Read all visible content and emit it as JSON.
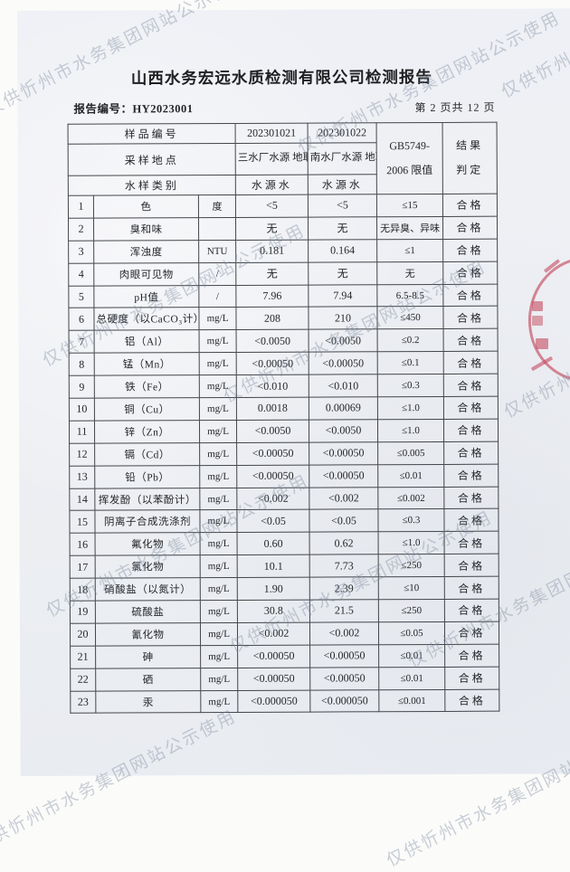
{
  "watermark": {
    "text": "仅供忻州市水务集团网站公示使用"
  },
  "report": {
    "title": "山西水务宏远水质检测有限公司检测报告",
    "report_no": "报告编号：HY2023001",
    "page_info": "第 2 页共 12 页"
  },
  "table": {
    "header": {
      "sample_no_label": "样品编号",
      "sampling_site_label": "采样地点",
      "sample_type_label": "水样类别",
      "sample1_no": "202301021",
      "sample2_no": "202301022",
      "sample1_site": "三水厂水源\n地取水口",
      "sample2_site": "南水厂水源\n地取水口",
      "sample1_type": "水源水",
      "sample2_type": "水源水",
      "limit_line1": "GB5749-",
      "limit_line2": "2006 限值",
      "result_line1": "结果",
      "result_line2": "判定"
    },
    "rows": [
      {
        "no": "1",
        "item": "色",
        "unit": "度",
        "v1": "<5",
        "v2": "<5",
        "limit": "≤15",
        "result": "合格"
      },
      {
        "no": "2",
        "item": "臭和味",
        "unit": "",
        "v1": "无",
        "v2": "无",
        "limit": "无异臭、异味",
        "result": "合格"
      },
      {
        "no": "3",
        "item": "浑浊度",
        "unit": "NTU",
        "v1": "0.181",
        "v2": "0.164",
        "limit": "≤1",
        "result": "合格"
      },
      {
        "no": "4",
        "item": "肉眼可见物",
        "unit": "/",
        "v1": "无",
        "v2": "无",
        "limit": "无",
        "result": "合格"
      },
      {
        "no": "5",
        "item": "pH值",
        "unit": "/",
        "v1": "7.96",
        "v2": "7.94",
        "limit": "6.5-8.5",
        "result": "合格"
      },
      {
        "no": "6",
        "item": "总硬度（以CaCO₃计）",
        "unit": "mg/L",
        "v1": "208",
        "v2": "210",
        "limit": "≤450",
        "result": "合格"
      },
      {
        "no": "7",
        "item": "铝（Al）",
        "unit": "mg/L",
        "v1": "<0.0050",
        "v2": "<0.0050",
        "limit": "≤0.2",
        "result": "合格"
      },
      {
        "no": "8",
        "item": "锰（Mn）",
        "unit": "mg/L",
        "v1": "<0.00050",
        "v2": "<0.00050",
        "limit": "≤0.1",
        "result": "合格"
      },
      {
        "no": "9",
        "item": "铁（Fe）",
        "unit": "mg/L",
        "v1": "<0.010",
        "v2": "<0.010",
        "limit": "≤0.3",
        "result": "合格"
      },
      {
        "no": "10",
        "item": "铜（Cu）",
        "unit": "mg/L",
        "v1": "0.0018",
        "v2": "0.00069",
        "limit": "≤1.0",
        "result": "合格"
      },
      {
        "no": "11",
        "item": "锌（Zn）",
        "unit": "mg/L",
        "v1": "<0.0050",
        "v2": "<0.0050",
        "limit": "≤1.0",
        "result": "合格"
      },
      {
        "no": "12",
        "item": "镉（Cd）",
        "unit": "mg/L",
        "v1": "<0.00050",
        "v2": "<0.00050",
        "limit": "≤0.005",
        "result": "合格"
      },
      {
        "no": "13",
        "item": "铅（Pb）",
        "unit": "mg/L",
        "v1": "<0.00050",
        "v2": "<0.00050",
        "limit": "≤0.01",
        "result": "合格"
      },
      {
        "no": "14",
        "item": "挥发酚（以苯酚计）",
        "unit": "mg/L",
        "v1": "<0.002",
        "v2": "<0.002",
        "limit": "≤0.002",
        "result": "合格"
      },
      {
        "no": "15",
        "item": "阴离子合成洗涤剂",
        "unit": "mg/L",
        "v1": "<0.05",
        "v2": "<0.05",
        "limit": "≤0.3",
        "result": "合格"
      },
      {
        "no": "16",
        "item": "氟化物",
        "unit": "mg/L",
        "v1": "0.60",
        "v2": "0.62",
        "limit": "≤1.0",
        "result": "合格"
      },
      {
        "no": "17",
        "item": "氯化物",
        "unit": "mg/L",
        "v1": "10.1",
        "v2": "7.73",
        "limit": "≤250",
        "result": "合格"
      },
      {
        "no": "18",
        "item": "硝酸盐（以氮计）",
        "unit": "mg/L",
        "v1": "1.90",
        "v2": "2.39",
        "limit": "≤10",
        "result": "合格"
      },
      {
        "no": "19",
        "item": "硫酸盐",
        "unit": "mg/L",
        "v1": "30.8",
        "v2": "21.5",
        "limit": "≤250",
        "result": "合格"
      },
      {
        "no": "20",
        "item": "氰化物",
        "unit": "mg/L",
        "v1": "<0.002",
        "v2": "<0.002",
        "limit": "≤0.05",
        "result": "合格"
      },
      {
        "no": "21",
        "item": "砷",
        "unit": "mg/L",
        "v1": "<0.00050",
        "v2": "<0.00050",
        "limit": "≤0.01",
        "result": "合格"
      },
      {
        "no": "22",
        "item": "硒",
        "unit": "mg/L",
        "v1": "<0.00050",
        "v2": "<0.00050",
        "limit": "≤0.01",
        "result": "合格"
      },
      {
        "no": "23",
        "item": "汞",
        "unit": "mg/L",
        "v1": "<0.000050",
        "v2": "<0.000050",
        "limit": "≤0.001",
        "result": "合格"
      }
    ]
  },
  "stamp": {
    "color": "#c54b60"
  }
}
